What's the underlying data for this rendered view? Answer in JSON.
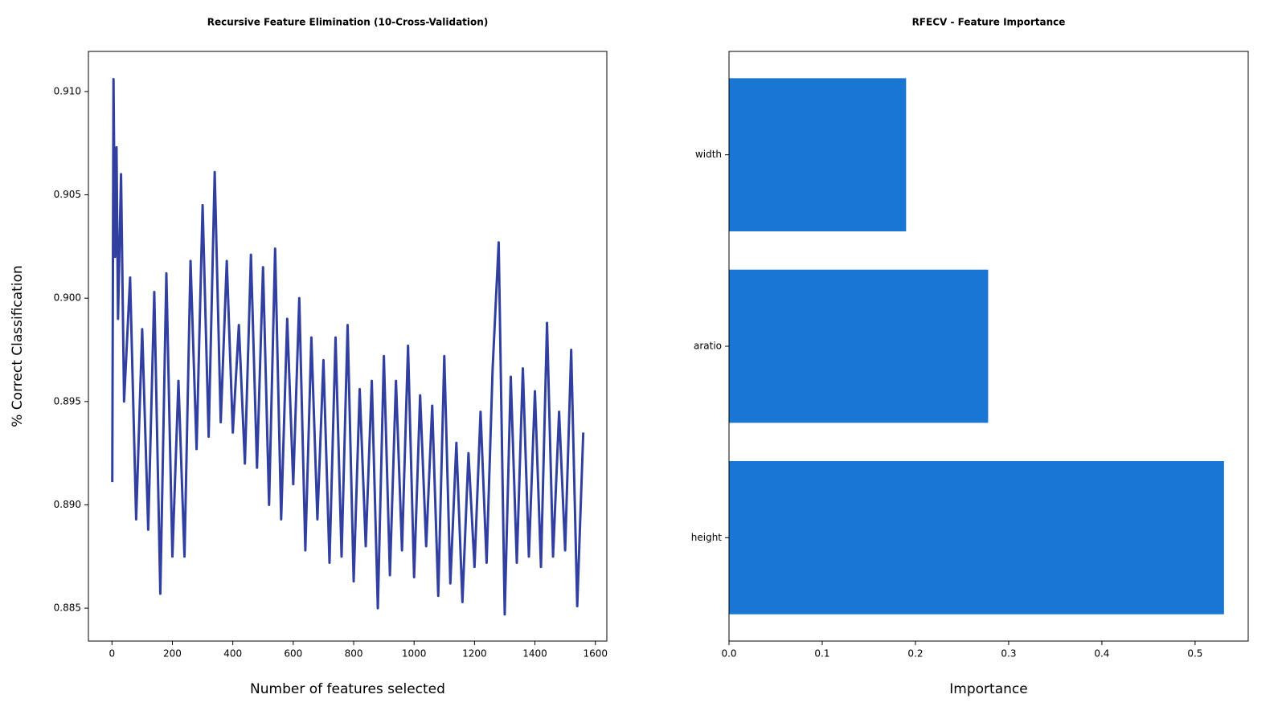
{
  "chart_data": [
    {
      "type": "line",
      "title": "Recursive Feature Elimination (10-Cross-Validation)",
      "xlabel": "Number of features selected",
      "ylabel": "% Correct Classification",
      "color": "#3140a0",
      "x": [
        1,
        5,
        10,
        15,
        20,
        30,
        40,
        60,
        80,
        100,
        120,
        140,
        160,
        180,
        200,
        220,
        240,
        260,
        280,
        300,
        320,
        340,
        360,
        380,
        400,
        420,
        440,
        460,
        480,
        500,
        520,
        540,
        560,
        580,
        600,
        620,
        640,
        660,
        680,
        700,
        720,
        740,
        760,
        780,
        800,
        820,
        840,
        860,
        880,
        900,
        920,
        940,
        960,
        980,
        1000,
        1020,
        1040,
        1060,
        1080,
        1100,
        1120,
        1140,
        1160,
        1180,
        1200,
        1220,
        1240,
        1260,
        1280,
        1300,
        1320,
        1340,
        1360,
        1380,
        1400,
        1420,
        1440,
        1460,
        1480,
        1500,
        1520,
        1540,
        1560
      ],
      "values": [
        0.8911,
        0.9106,
        0.902,
        0.9073,
        0.899,
        0.906,
        0.895,
        0.901,
        0.8893,
        0.8985,
        0.8888,
        0.9003,
        0.8857,
        0.9012,
        0.8875,
        0.896,
        0.8875,
        0.9018,
        0.8927,
        0.9045,
        0.8933,
        0.9061,
        0.894,
        0.9018,
        0.8935,
        0.8987,
        0.892,
        0.9021,
        0.8918,
        0.9015,
        0.89,
        0.9024,
        0.8893,
        0.899,
        0.891,
        0.9,
        0.8878,
        0.8981,
        0.8893,
        0.897,
        0.8872,
        0.8981,
        0.8875,
        0.8987,
        0.8863,
        0.8956,
        0.888,
        0.896,
        0.885,
        0.8972,
        0.8866,
        0.896,
        0.8878,
        0.8977,
        0.8865,
        0.8953,
        0.888,
        0.8948,
        0.8856,
        0.8972,
        0.8862,
        0.893,
        0.8853,
        0.8925,
        0.887,
        0.8945,
        0.8872,
        0.8966,
        0.9027,
        0.8847,
        0.8962,
        0.8872,
        0.8966,
        0.8875,
        0.8955,
        0.887,
        0.8988,
        0.8875,
        0.8945,
        0.8878,
        0.8975,
        0.8851,
        0.8935
      ],
      "xlim": [
        -78,
        1638
      ],
      "xticks": [
        0,
        200,
        400,
        600,
        800,
        1000,
        1200,
        1400,
        1600
      ],
      "ylim": [
        0.88341,
        0.91194
      ],
      "yticks": [
        {
          "value": 0.885,
          "label": "0.885"
        },
        {
          "value": 0.89,
          "label": "0.890"
        },
        {
          "value": 0.895,
          "label": "0.895"
        },
        {
          "value": 0.9,
          "label": "0.900"
        },
        {
          "value": 0.905,
          "label": "0.905"
        },
        {
          "value": 0.91,
          "label": "0.910"
        }
      ]
    },
    {
      "type": "barh",
      "title": "RFECV - Feature Importance",
      "xlabel": "Importance",
      "color": "#1976d2",
      "categories": [
        "height",
        "aratio",
        "width"
      ],
      "values": [
        0.531,
        0.278,
        0.19
      ],
      "xlim": [
        0,
        0.557
      ],
      "xticks": [
        {
          "value": 0,
          "label": "0.0"
        },
        0.1,
        0.2,
        0.3,
        0.4,
        0.5
      ]
    }
  ]
}
